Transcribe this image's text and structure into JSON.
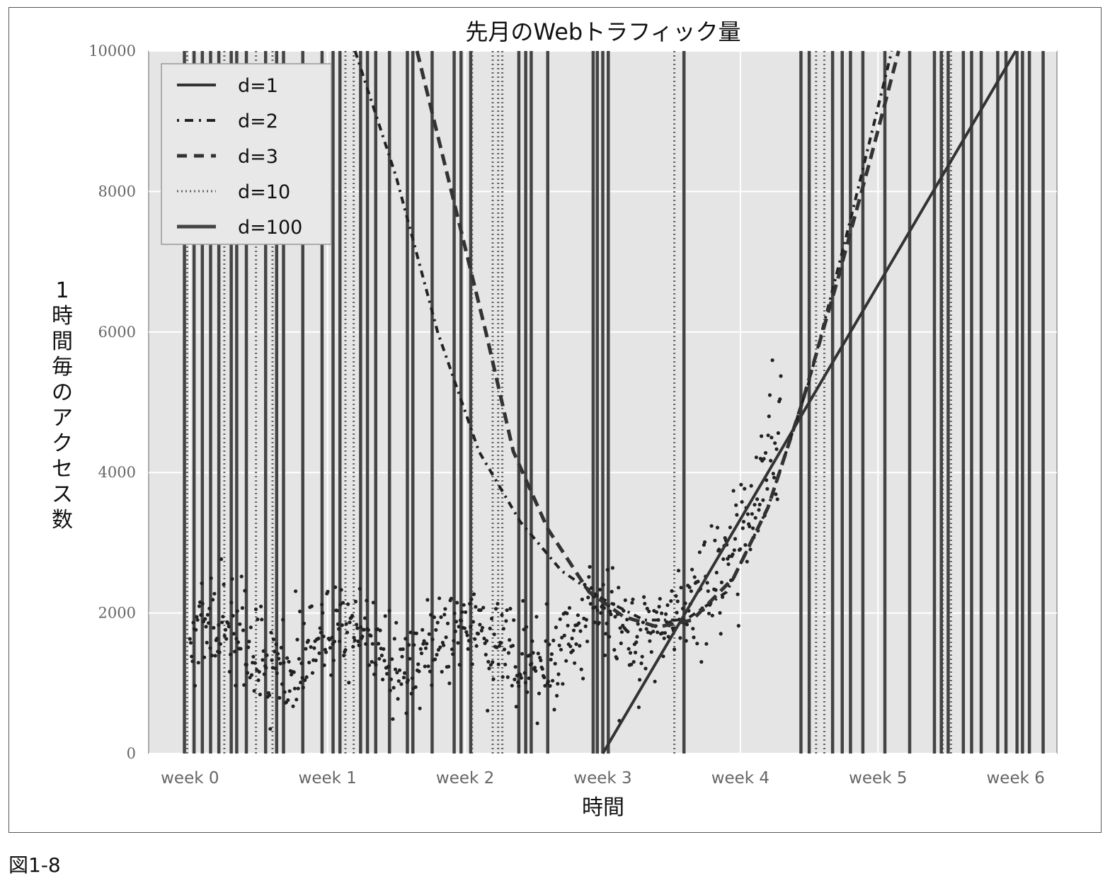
{
  "chart_data": {
    "type": "scatter",
    "title": "先月のWebトラフィック量",
    "xlabel": "時間",
    "ylabel": "1時間毎のアクセス数",
    "x_ticks": [
      "week 0",
      "week 1",
      "week 2",
      "week 3",
      "week 4",
      "week 5",
      "week 6"
    ],
    "y_ticks": [
      "0",
      "2000",
      "4000",
      "6000",
      "8000",
      "10000"
    ],
    "xlim": [
      -0.3,
      6.3
    ],
    "ylim": [
      0,
      10000
    ],
    "grid": true,
    "legend_position": "top-left",
    "series": [
      {
        "name": "d=1",
        "style": "solid",
        "kind": "line",
        "points": [
          [
            3.0,
            0
          ],
          [
            6.0,
            10000
          ]
        ]
      },
      {
        "name": "d=2",
        "style": "dashdot",
        "kind": "curve",
        "points": [
          [
            1.2,
            10000
          ],
          [
            1.5,
            8200
          ],
          [
            1.8,
            6000
          ],
          [
            2.1,
            4300
          ],
          [
            2.4,
            3300
          ],
          [
            2.7,
            2600
          ],
          [
            3.0,
            2200
          ],
          [
            3.3,
            1900
          ],
          [
            3.6,
            1900
          ],
          [
            3.9,
            2300
          ],
          [
            4.2,
            3500
          ],
          [
            4.5,
            5300
          ],
          [
            4.8,
            7600
          ],
          [
            5.1,
            10000
          ]
        ]
      },
      {
        "name": "d=3",
        "style": "dashed",
        "kind": "curve",
        "points": [
          [
            1.65,
            10000
          ],
          [
            1.9,
            8000
          ],
          [
            2.15,
            6000
          ],
          [
            2.35,
            4300
          ],
          [
            2.6,
            3200
          ],
          [
            2.9,
            2300
          ],
          [
            3.15,
            1950
          ],
          [
            3.4,
            1800
          ],
          [
            3.65,
            1900
          ],
          [
            3.95,
            2500
          ],
          [
            4.2,
            3500
          ],
          [
            4.45,
            5000
          ],
          [
            4.7,
            6700
          ],
          [
            4.95,
            8500
          ],
          [
            5.15,
            10000
          ]
        ]
      },
      {
        "name": "d=10",
        "style": "dotted",
        "kind": "vertical",
        "x": [
          -0.02,
          0.25,
          0.48,
          0.6,
          1.13,
          1.19,
          2.05,
          2.2,
          2.24,
          2.27,
          3.52,
          4.55,
          4.61,
          5.47,
          5.53
        ]
      },
      {
        "name": "d=100",
        "style": "solid-thick",
        "kind": "vertical",
        "x": [
          -0.04,
          0.03,
          0.09,
          0.15,
          0.21,
          0.3,
          0.34,
          0.41,
          0.55,
          0.63,
          0.68,
          0.82,
          0.96,
          1.04,
          1.09,
          1.24,
          1.29,
          1.35,
          1.45,
          1.58,
          1.62,
          1.76,
          1.92,
          1.97,
          2.04,
          2.39,
          2.44,
          2.48,
          2.6,
          2.93,
          2.96,
          3.0,
          3.04,
          3.59,
          4.44,
          4.5,
          4.67,
          4.74,
          4.8,
          4.89,
          5.05,
          5.23,
          5.41,
          5.46,
          5.51,
          5.62,
          5.68,
          5.75,
          5.87,
          5.93,
          6.01,
          6.05,
          6.1,
          6.2
        ]
      }
    ]
  },
  "caption": "図1-8"
}
